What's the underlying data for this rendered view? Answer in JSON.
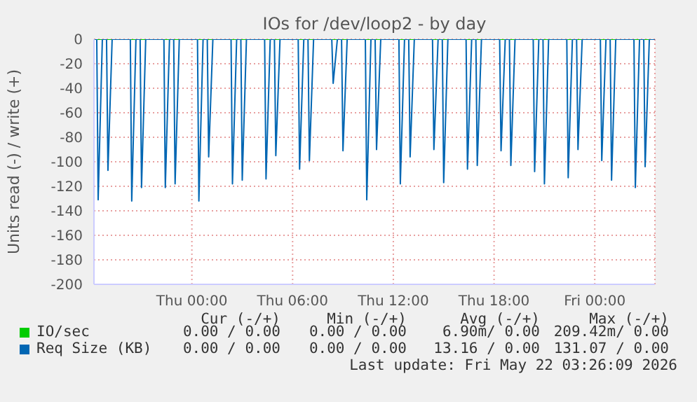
{
  "chart_data": {
    "type": "line",
    "title": "IOs for /dev/loop2 - by day",
    "ylabel": "Units read (-) / write (+)",
    "xlim": [
      "2026-05-20T18:10",
      "2026-05-22T03:35"
    ],
    "xticks": [
      {
        "value": "2026-05-21T00:00",
        "label": "Thu 00:00"
      },
      {
        "value": "2026-05-21T06:00",
        "label": "Thu 06:00"
      },
      {
        "value": "2026-05-21T12:00",
        "label": "Thu 12:00"
      },
      {
        "value": "2026-05-21T18:00",
        "label": "Thu 18:00"
      },
      {
        "value": "2026-05-22T00:00",
        "label": "Fri 00:00"
      }
    ],
    "ylim": [
      -200,
      0
    ],
    "yticks": [
      -200,
      -180,
      -160,
      -140,
      -120,
      -100,
      -80,
      -60,
      -40,
      -20,
      0
    ],
    "grid": true,
    "legend": "bottom left",
    "marker": "none",
    "line_style": "solid",
    "series": [
      {
        "name": "IO/sec",
        "color": "#00cc00",
        "x": [
          "2026-05-20T18:10",
          "2026-05-22T03:35"
        ],
        "values": [
          0,
          0
        ]
      },
      {
        "name": "Req Size (KB)",
        "color": "#0066b3",
        "x": [
          "2026-05-20T18:10",
          "2026-05-20T18:20",
          "2026-05-20T18:25",
          "2026-05-20T18:40",
          "2026-05-20T18:55",
          "2026-05-20T19:00",
          "2026-05-20T19:15",
          "2026-05-20T20:20",
          "2026-05-20T20:25",
          "2026-05-20T20:40",
          "2026-05-20T20:55",
          "2026-05-20T21:00",
          "2026-05-20T21:15",
          "2026-05-20T22:20",
          "2026-05-20T22:25",
          "2026-05-20T22:40",
          "2026-05-20T22:55",
          "2026-05-20T23:00",
          "2026-05-20T23:15",
          "2026-05-21T00:20",
          "2026-05-21T00:25",
          "2026-05-21T00:40",
          "2026-05-21T00:55",
          "2026-05-21T01:00",
          "2026-05-21T01:15",
          "2026-05-21T02:20",
          "2026-05-21T02:25",
          "2026-05-21T02:40",
          "2026-05-21T02:55",
          "2026-05-21T03:00",
          "2026-05-21T03:15",
          "2026-05-21T04:20",
          "2026-05-21T04:25",
          "2026-05-21T04:40",
          "2026-05-21T04:55",
          "2026-05-21T05:00",
          "2026-05-21T05:15",
          "2026-05-21T06:20",
          "2026-05-21T06:25",
          "2026-05-21T06:40",
          "2026-05-21T06:55",
          "2026-05-21T07:00",
          "2026-05-21T07:15",
          "2026-05-21T08:20",
          "2026-05-21T08:25",
          "2026-05-21T08:40",
          "2026-05-21T08:55",
          "2026-05-21T09:00",
          "2026-05-21T09:15",
          "2026-05-21T10:20",
          "2026-05-21T10:25",
          "2026-05-21T10:40",
          "2026-05-21T10:55",
          "2026-05-21T11:00",
          "2026-05-21T11:15",
          "2026-05-21T12:20",
          "2026-05-21T12:25",
          "2026-05-21T12:40",
          "2026-05-21T12:55",
          "2026-05-21T13:00",
          "2026-05-21T13:15",
          "2026-05-21T14:20",
          "2026-05-21T14:25",
          "2026-05-21T14:40",
          "2026-05-21T14:55",
          "2026-05-21T15:00",
          "2026-05-21T15:15",
          "2026-05-21T16:20",
          "2026-05-21T16:25",
          "2026-05-21T16:40",
          "2026-05-21T16:55",
          "2026-05-21T17:00",
          "2026-05-21T17:15",
          "2026-05-21T18:20",
          "2026-05-21T18:25",
          "2026-05-21T18:40",
          "2026-05-21T18:55",
          "2026-05-21T19:00",
          "2026-05-21T19:15",
          "2026-05-21T20:20",
          "2026-05-21T20:25",
          "2026-05-21T20:40",
          "2026-05-21T20:55",
          "2026-05-21T21:00",
          "2026-05-21T21:15",
          "2026-05-21T22:20",
          "2026-05-21T22:25",
          "2026-05-21T22:40",
          "2026-05-21T22:55",
          "2026-05-21T23:00",
          "2026-05-21T23:15",
          "2026-05-22T00:20",
          "2026-05-22T00:25",
          "2026-05-22T00:40",
          "2026-05-22T00:55",
          "2026-05-22T01:00",
          "2026-05-22T01:15",
          "2026-05-22T02:20",
          "2026-05-22T02:25",
          "2026-05-22T02:40",
          "2026-05-22T02:55",
          "2026-05-22T03:00",
          "2026-05-22T03:15",
          "2026-05-22T03:35"
        ],
        "values": [
          0,
          0,
          -131,
          0,
          0,
          -107,
          0,
          0,
          -132,
          0,
          0,
          -121,
          0,
          0,
          -121,
          0,
          0,
          -118,
          0,
          0,
          -132,
          0,
          0,
          -96,
          0,
          0,
          -118,
          0,
          0,
          -115,
          0,
          0,
          -114,
          0,
          0,
          -95,
          0,
          0,
          -106,
          0,
          0,
          -99,
          0,
          0,
          -36,
          0,
          0,
          -91,
          0,
          0,
          -131,
          0,
          0,
          -90,
          0,
          0,
          -118,
          0,
          0,
          -96,
          0,
          0,
          -90,
          0,
          0,
          -117,
          0,
          0,
          -106,
          0,
          0,
          -103,
          0,
          0,
          -91,
          0,
          0,
          -103,
          0,
          0,
          -108,
          0,
          0,
          -118,
          0,
          0,
          -113,
          0,
          0,
          -90,
          0,
          0,
          -99,
          0,
          0,
          -115,
          0,
          0,
          -121,
          0,
          0,
          -104,
          0,
          0
        ]
      }
    ],
    "annotations": [
      "Cur (-/+)",
      "Min (-/+)",
      "Avg (-/+)",
      "Max (-/+)",
      "0.00 / 0.00",
      "0.00 / 0.00",
      "6.90m/ 0.00",
      "209.42m/ 0.00",
      "0.00 / 0.00",
      "0.00 / 0.00",
      "13.16 / 0.00",
      "131.07 / 0.00",
      "Last update: Fri May 22 03:26:09 2026"
    ]
  }
}
